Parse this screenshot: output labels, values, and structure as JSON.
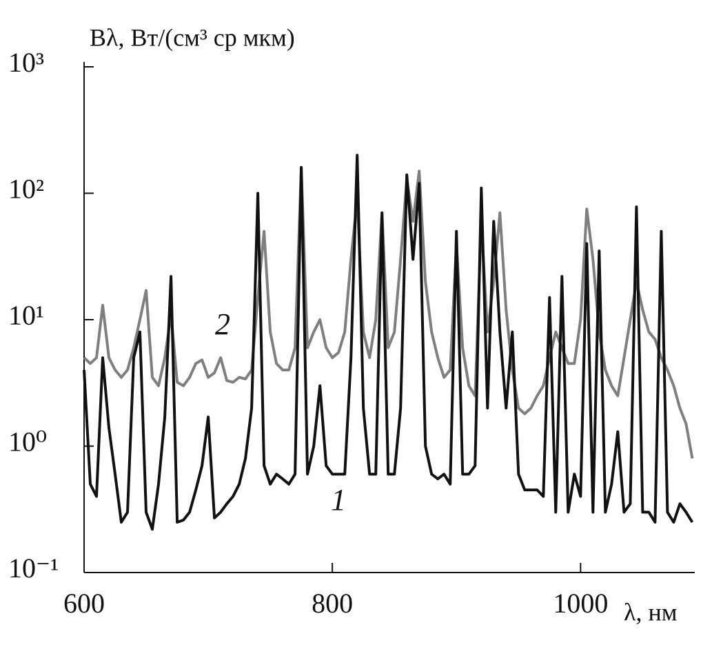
{
  "chart_data": {
    "type": "line",
    "title": "Bλ, Вт/(см³ ср мкм)",
    "x_label": "λ, нм",
    "x": [
      600,
      605,
      610,
      615,
      620,
      625,
      630,
      635,
      640,
      645,
      650,
      655,
      660,
      665,
      670,
      675,
      680,
      685,
      690,
      695,
      700,
      705,
      710,
      715,
      720,
      725,
      730,
      735,
      740,
      745,
      750,
      755,
      760,
      765,
      770,
      775,
      780,
      785,
      790,
      795,
      800,
      805,
      810,
      815,
      820,
      825,
      830,
      835,
      840,
      845,
      850,
      855,
      860,
      865,
      870,
      875,
      880,
      885,
      890,
      895,
      900,
      905,
      910,
      915,
      920,
      925,
      930,
      935,
      940,
      945,
      950,
      955,
      960,
      965,
      970,
      975,
      980,
      985,
      990,
      995,
      1000,
      1005,
      1010,
      1015,
      1020,
      1025,
      1030,
      1035,
      1040,
      1045,
      1050,
      1055,
      1060,
      1065,
      1070,
      1075,
      1080,
      1085,
      1090
    ],
    "series": [
      {
        "name": "1",
        "color": "#111111",
        "values": [
          4,
          0.5,
          0.4,
          5,
          1.4,
          0.6,
          0.25,
          0.3,
          5,
          8,
          0.3,
          0.22,
          0.5,
          1.7,
          22,
          0.25,
          0.26,
          0.3,
          0.45,
          0.7,
          1.7,
          0.27,
          0.3,
          0.35,
          0.4,
          0.5,
          0.8,
          2,
          100,
          0.7,
          0.5,
          0.6,
          0.55,
          0.5,
          0.6,
          160,
          0.6,
          1,
          3,
          0.7,
          0.6,
          0.6,
          0.6,
          5,
          200,
          2,
          0.6,
          0.6,
          70,
          0.6,
          0.6,
          2,
          140,
          30,
          120,
          1,
          0.6,
          0.55,
          0.6,
          0.5,
          50,
          0.6,
          0.6,
          0.7,
          110,
          2,
          60,
          8,
          2,
          8,
          0.6,
          0.45,
          0.45,
          0.45,
          0.4,
          15,
          0.3,
          22,
          0.3,
          0.6,
          0.4,
          40,
          0.3,
          35,
          0.3,
          0.5,
          1.3,
          0.3,
          0.35,
          78,
          0.3,
          0.3,
          0.25,
          50,
          0.3,
          0.25,
          0.35,
          0.3,
          0.25
        ]
      },
      {
        "name": "2",
        "color": "#7f7f7f",
        "values": [
          5,
          4.5,
          5,
          13,
          5,
          4,
          3.5,
          4,
          6,
          10,
          17,
          3.5,
          3,
          5,
          11,
          3.2,
          3,
          3.5,
          4.5,
          4.8,
          3.5,
          3.8,
          5,
          3.3,
          3.2,
          3.5,
          3.4,
          4,
          15,
          50,
          8,
          4.5,
          4,
          4,
          6,
          160,
          6,
          8,
          10,
          6,
          5,
          5.5,
          8,
          30,
          90,
          8,
          5,
          10,
          70,
          6,
          8,
          30,
          130,
          60,
          150,
          20,
          8,
          5,
          3.5,
          4,
          40,
          6,
          3,
          2.5,
          60,
          8,
          20,
          70,
          12,
          4,
          2,
          1.8,
          2,
          2.5,
          3,
          5,
          8,
          6,
          4.5,
          4.5,
          10,
          75,
          30,
          8,
          4,
          3,
          2.5,
          5,
          10,
          20,
          12,
          8,
          7,
          5,
          4,
          3,
          2,
          1.5,
          0.8
        ]
      }
    ],
    "xlim": [
      600,
      1092
    ],
    "xticks": [
      600,
      800,
      1000
    ],
    "ylim": [
      0.1,
      1000
    ],
    "ylog": true,
    "yticks": [
      {
        "value": 0.1,
        "label": "10⁻¹"
      },
      {
        "value": 1,
        "label": "10⁰"
      },
      {
        "value": 10,
        "label": "10¹"
      },
      {
        "value": 100,
        "label": "10²"
      },
      {
        "value": 1000,
        "label": "10³"
      }
    ]
  }
}
